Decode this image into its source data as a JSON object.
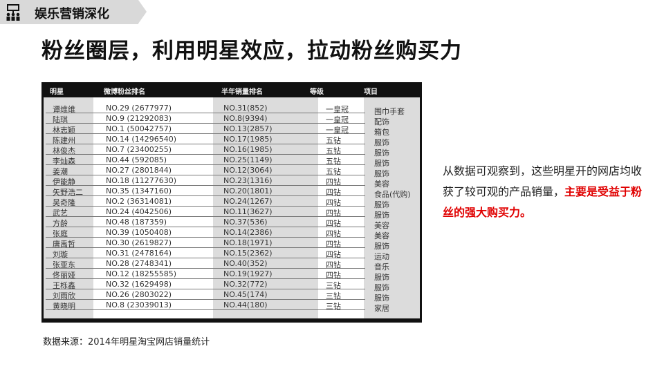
{
  "header": {
    "section_title": "娱乐营销深化",
    "icon": "org-chart-icon"
  },
  "title": "粉丝圈层，利用明星效应，拉动粉丝购买力",
  "table": {
    "columns": [
      "明星",
      "微博粉丝排名",
      "半年销量排名",
      "等级",
      "项目"
    ],
    "rows": [
      [
        "谭维维",
        "NO.29 (2677977)",
        "NO.31(852)",
        "一皇冠",
        "围巾手套"
      ],
      [
        "陆琪",
        "NO.9 (21292083)",
        "NO.8(9394)",
        "一皇冠",
        "配饰"
      ],
      [
        "林志颖",
        "NO.1 (50042757)",
        "NO.13(2857)",
        "一皇冠",
        "箱包"
      ],
      [
        "陈建州",
        "NO.14 (14296540)",
        "NO.17(1985)",
        "五钻",
        "服饰"
      ],
      [
        "林俊杰",
        "NO.7 (23400255)",
        "NO.16(1985)",
        "五钻",
        "服饰"
      ],
      [
        "李灿森",
        "NO.44 (592085)",
        "NO.25(1149)",
        "五钻",
        "服饰"
      ],
      [
        "姜潮",
        "NO.27 (2801844)",
        "NO.12(3064)",
        "五钻",
        "服饰"
      ],
      [
        "伊能静",
        "NO.18 (11277630)",
        "NO.23(1316)",
        "四钻",
        "美容"
      ],
      [
        "矢野浩二",
        "NO.35 (1347160)",
        "NO.20(1801)",
        "四钻",
        "食品(代购)"
      ],
      [
        "吴奇隆",
        "NO.2 (36314081)",
        "NO.24(1267)",
        "四钻",
        "服饰"
      ],
      [
        "武艺",
        "NO.24 (4042506)",
        "NO.11(3627)",
        "四钻",
        "服饰"
      ],
      [
        "方龄",
        "NO.48 (187359)",
        "NO.37(536)",
        "四钻",
        "美容"
      ],
      [
        "张庭",
        "NO.39 (1050408)",
        "NO.14(2386)",
        "四钻",
        "美容"
      ],
      [
        "唐禹哲",
        "NO.30 (2619827)",
        "NO.18(1971)",
        "四钻",
        "服饰"
      ],
      [
        "刘璇",
        "NO.31 (2478164)",
        "NO.15(2362)",
        "四钻",
        "运动"
      ],
      [
        "张亚东",
        "NO.28 (2748341)",
        "NO.40(352)",
        "四钻",
        "音乐"
      ],
      [
        "佟丽娅",
        "NO.12 (18255585)",
        "NO.19(1927)",
        "四钻",
        "服饰"
      ],
      [
        "王栎鑫",
        "NO.32 (1629498)",
        "NO.32(772)",
        "三钻",
        "服饰"
      ],
      [
        "刘雨欣",
        "NO.26 (2803022)",
        "NO.45(174)",
        "三钻",
        "服饰"
      ],
      [
        "黄晓明",
        "NO.8 (23039013)",
        "NO.44(180)",
        "三钻",
        "家居"
      ]
    ]
  },
  "side_text": {
    "normal": "从数据可观察到，这些明星开的网店均收获了较可观的产品销量，",
    "highlight": "主要是受益于粉丝的强大购买力。",
    "highlight_color": "#e00000"
  },
  "source": "数据来源：2014年明星淘宝网店销量统计"
}
